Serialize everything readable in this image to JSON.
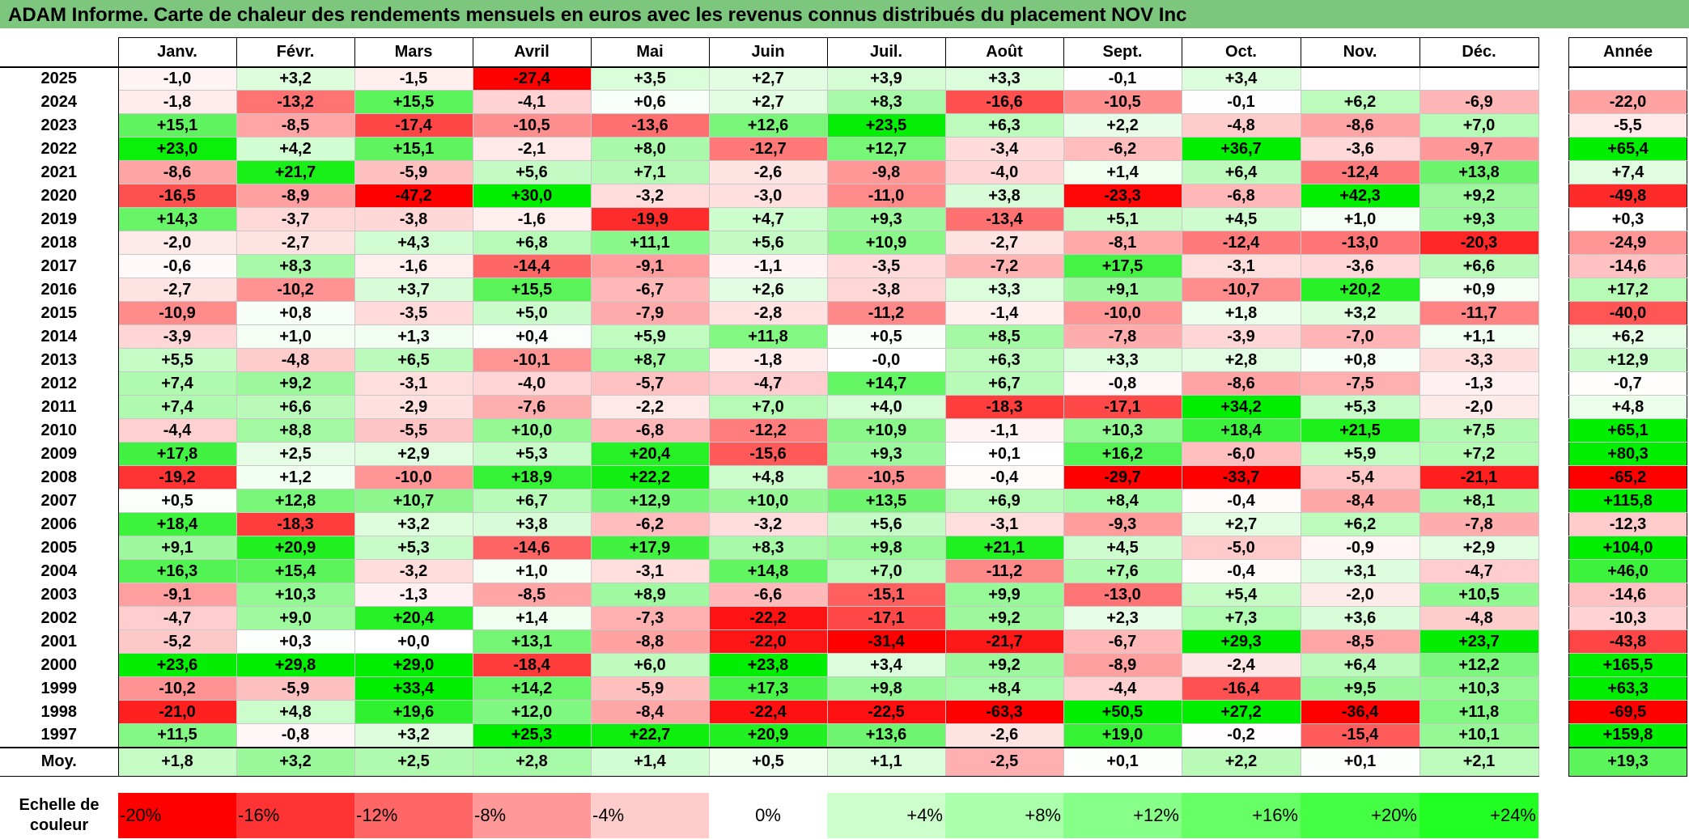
{
  "title": "ADAM Informe. Carte de chaleur des rendements mensuels en euros avec les revenus connus distribués du placement NOV Inc",
  "chart_data": {
    "type": "heatmap",
    "title": "ADAM Informe. Carte de chaleur des rendements mensuels en euros avec les revenus connus distribués du placement NOV Inc",
    "months": [
      "Janv.",
      "Févr.",
      "Mars",
      "Avril",
      "Mai",
      "Juin",
      "Juil.",
      "Août",
      "Sept.",
      "Oct.",
      "Nov.",
      "Déc."
    ],
    "annual_header": "Année",
    "rows": [
      {
        "year": "2025",
        "values": [
          "-1,0",
          "+3,2",
          "-1,5",
          "-27,4",
          "+3,5",
          "+2,7",
          "+3,9",
          "+3,3",
          "-0,1",
          "+3,4",
          "",
          ""
        ],
        "annual": ""
      },
      {
        "year": "2024",
        "values": [
          "-1,8",
          "-13,2",
          "+15,5",
          "-4,1",
          "+0,6",
          "+2,7",
          "+8,3",
          "-16,6",
          "-10,5",
          "-0,1",
          "+6,2",
          "-6,9"
        ],
        "annual": "-22,0"
      },
      {
        "year": "2023",
        "values": [
          "+15,1",
          "-8,5",
          "-17,4",
          "-10,5",
          "-13,6",
          "+12,6",
          "+23,5",
          "+6,3",
          "+2,2",
          "-4,8",
          "-8,6",
          "+7,0"
        ],
        "annual": "-5,5"
      },
      {
        "year": "2022",
        "values": [
          "+23,0",
          "+4,2",
          "+15,1",
          "-2,1",
          "+8,0",
          "-12,7",
          "+12,7",
          "-3,4",
          "-6,2",
          "+36,7",
          "-3,6",
          "-9,7"
        ],
        "annual": "+65,4"
      },
      {
        "year": "2021",
        "values": [
          "-8,6",
          "+21,7",
          "-5,9",
          "+5,6",
          "+7,1",
          "-2,6",
          "-9,8",
          "-4,0",
          "+1,4",
          "+6,4",
          "-12,4",
          "+13,8"
        ],
        "annual": "+7,4"
      },
      {
        "year": "2020",
        "values": [
          "-16,5",
          "-8,9",
          "-47,2",
          "+30,0",
          "-3,2",
          "-3,0",
          "-11,0",
          "+3,8",
          "-23,3",
          "-6,8",
          "+42,3",
          "+9,2"
        ],
        "annual": "-49,8"
      },
      {
        "year": "2019",
        "values": [
          "+14,3",
          "-3,7",
          "-3,8",
          "-1,6",
          "-19,9",
          "+4,7",
          "+9,3",
          "-13,4",
          "+5,1",
          "+4,5",
          "+1,0",
          "+9,3"
        ],
        "annual": "+0,3"
      },
      {
        "year": "2018",
        "values": [
          "-2,0",
          "-2,7",
          "+4,3",
          "+6,8",
          "+11,1",
          "+5,6",
          "+10,9",
          "-2,7",
          "-8,1",
          "-12,4",
          "-13,0",
          "-20,3"
        ],
        "annual": "-24,9"
      },
      {
        "year": "2017",
        "values": [
          "-0,6",
          "+8,3",
          "-1,6",
          "-14,4",
          "-9,1",
          "-1,1",
          "-3,5",
          "-7,2",
          "+17,5",
          "-3,1",
          "-3,6",
          "+6,6"
        ],
        "annual": "-14,6"
      },
      {
        "year": "2016",
        "values": [
          "-2,7",
          "-10,2",
          "+3,7",
          "+15,5",
          "-6,7",
          "+2,6",
          "-3,8",
          "+3,3",
          "+9,1",
          "-10,7",
          "+20,2",
          "+0,9"
        ],
        "annual": "+17,2"
      },
      {
        "year": "2015",
        "values": [
          "-10,9",
          "+0,8",
          "-3,5",
          "+5,0",
          "-7,9",
          "-2,8",
          "-11,2",
          "-1,4",
          "-10,0",
          "+1,8",
          "+3,2",
          "-11,7"
        ],
        "annual": "-40,0"
      },
      {
        "year": "2014",
        "values": [
          "-3,9",
          "+1,0",
          "+1,3",
          "+0,4",
          "+5,9",
          "+11,8",
          "+0,5",
          "+8,5",
          "-7,8",
          "-3,9",
          "-7,0",
          "+1,1"
        ],
        "annual": "+6,2"
      },
      {
        "year": "2013",
        "values": [
          "+5,5",
          "-4,8",
          "+6,5",
          "-10,1",
          "+8,7",
          "-1,8",
          "-0,0",
          "+6,3",
          "+3,3",
          "+2,8",
          "+0,8",
          "-3,3"
        ],
        "annual": "+12,9"
      },
      {
        "year": "2012",
        "values": [
          "+7,4",
          "+9,2",
          "-3,1",
          "-4,0",
          "-5,7",
          "-4,7",
          "+14,7",
          "+6,7",
          "-0,8",
          "-8,6",
          "-7,5",
          "-1,3"
        ],
        "annual": "-0,7"
      },
      {
        "year": "2011",
        "values": [
          "+7,4",
          "+6,6",
          "-2,9",
          "-7,6",
          "-2,2",
          "+7,0",
          "+4,0",
          "-18,3",
          "-17,1",
          "+34,2",
          "+5,3",
          "-2,0"
        ],
        "annual": "+4,8"
      },
      {
        "year": "2010",
        "values": [
          "-4,4",
          "+8,8",
          "-5,5",
          "+10,0",
          "-6,8",
          "-12,2",
          "+10,9",
          "-1,1",
          "+10,3",
          "+18,4",
          "+21,5",
          "+7,5"
        ],
        "annual": "+65,1"
      },
      {
        "year": "2009",
        "values": [
          "+17,8",
          "+2,5",
          "+2,9",
          "+5,3",
          "+20,4",
          "-15,6",
          "+9,3",
          "+0,1",
          "+16,2",
          "-6,0",
          "+5,9",
          "+7,2"
        ],
        "annual": "+80,3"
      },
      {
        "year": "2008",
        "values": [
          "-19,2",
          "+1,2",
          "-10,0",
          "+18,9",
          "+22,2",
          "+4,8",
          "-10,5",
          "-0,4",
          "-29,7",
          "-33,7",
          "-5,4",
          "-21,1"
        ],
        "annual": "-65,2"
      },
      {
        "year": "2007",
        "values": [
          "+0,5",
          "+12,8",
          "+10,7",
          "+6,7",
          "+12,9",
          "+10,0",
          "+13,5",
          "+6,9",
          "+8,4",
          "-0,4",
          "-8,4",
          "+8,1"
        ],
        "annual": "+115,8"
      },
      {
        "year": "2006",
        "values": [
          "+18,4",
          "-18,3",
          "+3,2",
          "+3,8",
          "-6,2",
          "-3,2",
          "+5,6",
          "-3,1",
          "-9,3",
          "+2,7",
          "+6,2",
          "-7,8"
        ],
        "annual": "-12,3"
      },
      {
        "year": "2005",
        "values": [
          "+9,1",
          "+20,9",
          "+5,3",
          "-14,6",
          "+17,9",
          "+8,3",
          "+9,8",
          "+21,1",
          "+4,5",
          "-5,0",
          "-0,9",
          "+2,9"
        ],
        "annual": "+104,0"
      },
      {
        "year": "2004",
        "values": [
          "+16,3",
          "+15,4",
          "-3,2",
          "+1,0",
          "-3,1",
          "+14,8",
          "+7,0",
          "-11,2",
          "+7,6",
          "-0,4",
          "+3,1",
          "-4,7"
        ],
        "annual": "+46,0"
      },
      {
        "year": "2003",
        "values": [
          "-9,1",
          "+10,3",
          "-1,3",
          "-8,5",
          "+8,9",
          "-6,6",
          "-15,1",
          "+9,9",
          "-13,0",
          "+5,4",
          "-2,0",
          "+10,5"
        ],
        "annual": "-14,6"
      },
      {
        "year": "2002",
        "values": [
          "-4,7",
          "+9,0",
          "+20,4",
          "+1,4",
          "-7,3",
          "-22,2",
          "-17,1",
          "+9,2",
          "+2,3",
          "+7,3",
          "+3,6",
          "-4,8"
        ],
        "annual": "-10,3"
      },
      {
        "year": "2001",
        "values": [
          "-5,2",
          "+0,3",
          "+0,0",
          "+13,1",
          "-8,8",
          "-22,0",
          "-31,4",
          "-21,7",
          "-6,7",
          "+29,3",
          "-8,5",
          "+23,7"
        ],
        "annual": "-43,8"
      },
      {
        "year": "2000",
        "values": [
          "+23,6",
          "+29,8",
          "+29,0",
          "-18,4",
          "+6,0",
          "+23,8",
          "+3,4",
          "+9,2",
          "-8,9",
          "-2,4",
          "+6,4",
          "+12,2"
        ],
        "annual": "+165,5"
      },
      {
        "year": "1999",
        "values": [
          "-10,2",
          "-5,9",
          "+33,4",
          "+14,2",
          "-5,9",
          "+17,3",
          "+9,8",
          "+8,4",
          "-4,4",
          "-16,4",
          "+9,5",
          "+10,3"
        ],
        "annual": "+63,3"
      },
      {
        "year": "1998",
        "values": [
          "-21,0",
          "+4,8",
          "+19,6",
          "+12,0",
          "-8,4",
          "-22,4",
          "-22,5",
          "-63,3",
          "+50,5",
          "+27,2",
          "-36,4",
          "+11,8"
        ],
        "annual": "-69,5"
      },
      {
        "year": "1997",
        "values": [
          "+11,5",
          "-0,8",
          "+3,2",
          "+25,3",
          "+22,7",
          "+20,9",
          "+13,6",
          "-2,6",
          "+19,0",
          "-0,2",
          "-15,4",
          "+10,1"
        ],
        "annual": "+159,8"
      }
    ],
    "average": {
      "label": "Moy.",
      "values": [
        "+1,8",
        "+3,2",
        "+2,5",
        "+2,8",
        "+1,4",
        "+0,5",
        "+1,1",
        "-2,5",
        "+0,1",
        "+2,2",
        "+0,1",
        "+2,1"
      ],
      "annual": "+19,3"
    },
    "color_scale": {
      "label": "Echelle de couleur",
      "ticks": [
        "-20%",
        "-16%",
        "-12%",
        "-8%",
        "-4%",
        "0%",
        "+4%",
        "+8%",
        "+12%",
        "+16%",
        "+20%",
        "+24%"
      ],
      "colors": [
        "#ff0000",
        "#ff3333",
        "#ff6666",
        "#ff9999",
        "#ffcccc",
        "#ffffff",
        "#ccffcc",
        "#aaffaa",
        "#88ff88",
        "#66ff66",
        "#44ff44",
        "#22ff22"
      ],
      "negative_color": "#ff0000",
      "zero_color": "#ffffff",
      "positive_color": "#00ee00"
    }
  }
}
